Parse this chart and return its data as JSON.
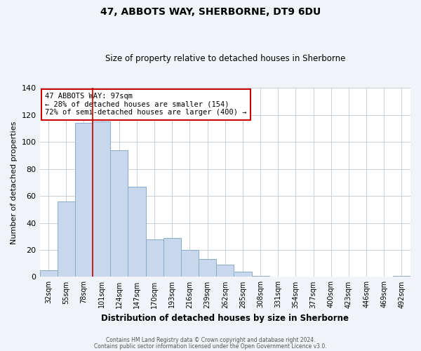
{
  "title": "47, ABBOTS WAY, SHERBORNE, DT9 6DU",
  "subtitle": "Size of property relative to detached houses in Sherborne",
  "xlabel": "Distribution of detached houses by size in Sherborne",
  "ylabel": "Number of detached properties",
  "bar_labels": [
    "32sqm",
    "55sqm",
    "78sqm",
    "101sqm",
    "124sqm",
    "147sqm",
    "170sqm",
    "193sqm",
    "216sqm",
    "239sqm",
    "262sqm",
    "285sqm",
    "308sqm",
    "331sqm",
    "354sqm",
    "377sqm",
    "400sqm",
    "423sqm",
    "446sqm",
    "469sqm",
    "492sqm"
  ],
  "bar_values": [
    5,
    56,
    114,
    115,
    94,
    67,
    28,
    29,
    20,
    13,
    9,
    4,
    1,
    0,
    0,
    0,
    0,
    0,
    0,
    0,
    1
  ],
  "bar_color": "#c8d8ec",
  "bar_edge_color": "#8aaac8",
  "background_color": "#f0f4f8",
  "plot_bg_color": "#ffffff",
  "grid_color": "#c8d0d8",
  "vline_x": 2.5,
  "vline_color": "#cc0000",
  "annotation_title": "47 ABBOTS WAY: 97sqm",
  "annotation_line1": "← 28% of detached houses are smaller (154)",
  "annotation_line2": "72% of semi-detached houses are larger (400) →",
  "annotation_box_color": "#ffffff",
  "annotation_box_edge": "#cc0000",
  "footer1": "Contains HM Land Registry data © Crown copyright and database right 2024.",
  "footer2": "Contains public sector information licensed under the Open Government Licence v3.0.",
  "ylim": [
    0,
    140
  ],
  "yticks": [
    0,
    20,
    40,
    60,
    80,
    100,
    120,
    140
  ]
}
